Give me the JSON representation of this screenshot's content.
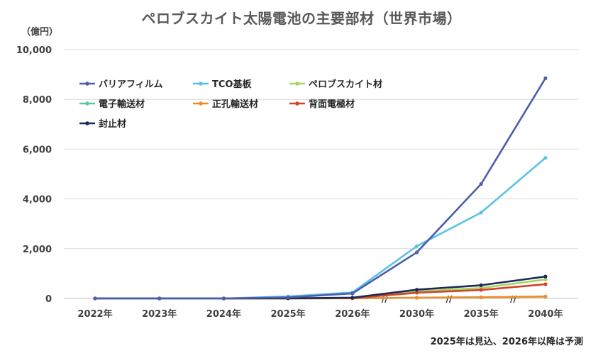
{
  "chart_data": {
    "type": "line",
    "title": "ペロブスカイト太陽電池の主要部材（世界市場）",
    "unit_label": "（億円）",
    "footnote": "2025年は見込、2026年以降は予測",
    "categories": [
      "2022年",
      "2023年",
      "2024年",
      "2025年",
      "2026年",
      "2030年",
      "2035年",
      "2040年"
    ],
    "axis_breaks_after": [
      "2026年",
      "2030年",
      "2035年"
    ],
    "axis_break_mark": "//",
    "ylim": [
      0,
      10000
    ],
    "yticks": [
      0,
      2000,
      4000,
      6000,
      8000,
      10000
    ],
    "ytick_labels": [
      "0",
      "2,000",
      "4,000",
      "6,000",
      "8,000",
      "10,000"
    ],
    "grid": true,
    "legend_position": "top-left",
    "series": [
      {
        "name": "バリアフィルム",
        "color": "#4a5eab",
        "values": [
          0,
          0,
          0,
          40,
          200,
          1850,
          4600,
          8850
        ]
      },
      {
        "name": "TCO基板",
        "color": "#5bc2e7",
        "values": [
          0,
          0,
          0,
          80,
          240,
          2100,
          3450,
          5650
        ]
      },
      {
        "name": "ペロブスカイト材",
        "color": "#a5d65a",
        "values": [
          0,
          0,
          0,
          5,
          20,
          280,
          420,
          760
        ]
      },
      {
        "name": "電子輸送材",
        "color": "#5cc6a8",
        "values": [
          0,
          0,
          0,
          2,
          6,
          30,
          50,
          80
        ]
      },
      {
        "name": "正孔輸送材",
        "color": "#f28c28",
        "values": [
          0,
          0,
          0,
          2,
          6,
          25,
          40,
          70
        ]
      },
      {
        "name": "背面電極材",
        "color": "#d0432a",
        "values": [
          0,
          0,
          0,
          3,
          12,
          230,
          340,
          570
        ]
      },
      {
        "name": "封止材",
        "color": "#1c2a5a",
        "values": [
          0,
          0,
          0,
          6,
          30,
          350,
          530,
          880
        ]
      }
    ]
  }
}
